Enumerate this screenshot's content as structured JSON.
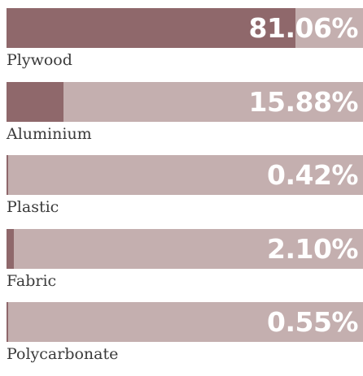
{
  "chart_data": {
    "type": "bar",
    "orientation": "horizontal",
    "categories": [
      "Plywood",
      "Aluminium",
      "Plastic",
      "Fabric",
      "Polycarbonate"
    ],
    "values": [
      81.06,
      15.88,
      0.42,
      2.1,
      0.55
    ],
    "value_labels": [
      "81.06%",
      "15.88%",
      "0.42%",
      "2.10%",
      "0.55%"
    ],
    "xlim": [
      0,
      100
    ],
    "grid": false,
    "colors": {
      "fill": "#8f686b",
      "track": "#c4afaf",
      "value_text": "#ffffff",
      "label_text": "#3a3a3a"
    }
  }
}
